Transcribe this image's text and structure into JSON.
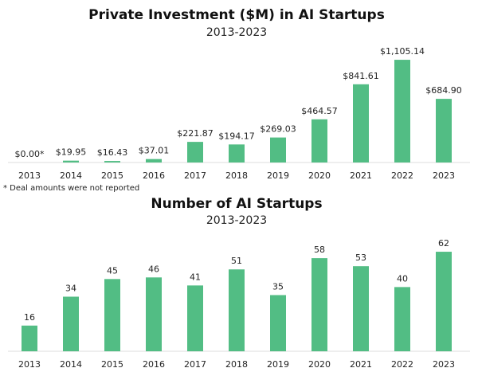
{
  "chart_data": [
    {
      "type": "bar",
      "title": "Private Investment ($M) in AI Startups",
      "subtitle": "2013-2023",
      "categories": [
        "2013",
        "2014",
        "2015",
        "2016",
        "2017",
        "2018",
        "2019",
        "2020",
        "2021",
        "2022",
        "2023"
      ],
      "values": [
        0.0,
        19.95,
        16.43,
        37.01,
        221.87,
        194.17,
        269.03,
        464.57,
        841.61,
        1105.14,
        684.9
      ],
      "data_labels": [
        "$0.00*",
        "$19.95",
        "$16.43",
        "$37.01",
        "$221.87",
        "$194.17",
        "$269.03",
        "$464.57",
        "$841.61",
        "$1,105.14",
        "$684.90"
      ],
      "footnote": "* Deal amounts were not reported",
      "xlabel": "",
      "ylabel": "",
      "ylim": [
        0,
        1200
      ],
      "grid": false,
      "color": "#52bd84"
    },
    {
      "type": "bar",
      "title": "Number of AI Startups",
      "subtitle": "2013-2023",
      "categories": [
        "2013",
        "2014",
        "2015",
        "2016",
        "2017",
        "2018",
        "2019",
        "2020",
        "2021",
        "2022",
        "2023"
      ],
      "values": [
        16,
        34,
        45,
        46,
        41,
        51,
        35,
        58,
        53,
        40,
        62
      ],
      "data_labels": [
        "16",
        "34",
        "45",
        "46",
        "41",
        "51",
        "35",
        "58",
        "53",
        "40",
        "62"
      ],
      "xlabel": "",
      "ylabel": "",
      "ylim": [
        0,
        65
      ],
      "grid": false,
      "color": "#52bd84"
    }
  ]
}
